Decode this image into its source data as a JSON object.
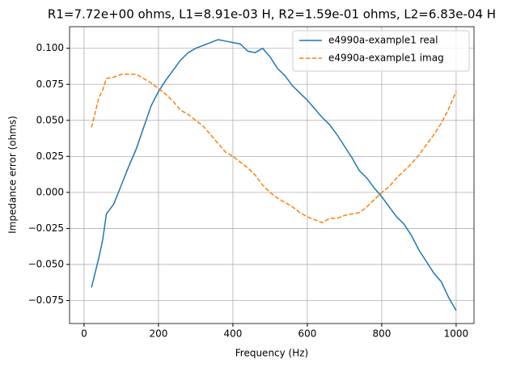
{
  "chart_data": {
    "type": "line",
    "title": "R1=7.72e+00 ohms, L1=8.91e-03 H, R2=1.59e-01 ohms, L2=6.83e-04 H",
    "xlabel": "Frequency (Hz)",
    "ylabel": "Impedance error (ohms)",
    "x": [
      20,
      40,
      50,
      60,
      80,
      100,
      120,
      140,
      160,
      180,
      200,
      220,
      240,
      260,
      280,
      300,
      320,
      340,
      360,
      380,
      400,
      420,
      440,
      460,
      480,
      500,
      520,
      540,
      560,
      580,
      600,
      620,
      640,
      660,
      680,
      700,
      720,
      740,
      760,
      780,
      800,
      820,
      840,
      860,
      880,
      900,
      920,
      940,
      960,
      980,
      1000
    ],
    "series": [
      {
        "name": "e4990a-example1 real",
        "color": "#1f77b4",
        "linestyle": "solid",
        "values": [
          -0.066,
          -0.045,
          -0.033,
          -0.015,
          -0.008,
          0.005,
          0.018,
          0.03,
          0.045,
          0.06,
          0.07,
          0.078,
          0.085,
          0.092,
          0.097,
          0.1,
          0.102,
          0.104,
          0.106,
          0.105,
          0.104,
          0.103,
          0.098,
          0.097,
          0.1,
          0.094,
          0.086,
          0.081,
          0.074,
          0.069,
          0.064,
          0.058,
          0.052,
          0.047,
          0.04,
          0.032,
          0.024,
          0.015,
          0.01,
          0.003,
          -0.003,
          -0.01,
          -0.017,
          -0.022,
          -0.03,
          -0.04,
          -0.048,
          -0.056,
          -0.062,
          -0.073,
          -0.082
        ]
      },
      {
        "name": "e4990a-example1 imag",
        "color": "#ff7f0e",
        "linestyle": "dashed",
        "values": [
          0.045,
          0.066,
          0.071,
          0.079,
          0.08,
          0.082,
          0.082,
          0.082,
          0.079,
          0.076,
          0.072,
          0.068,
          0.063,
          0.057,
          0.054,
          0.05,
          0.046,
          0.04,
          0.034,
          0.028,
          0.025,
          0.021,
          0.017,
          0.012,
          0.005,
          0.0,
          -0.004,
          -0.007,
          -0.01,
          -0.014,
          -0.017,
          -0.019,
          -0.021,
          -0.018,
          -0.018,
          -0.016,
          -0.015,
          -0.014,
          -0.01,
          -0.005,
          0.0,
          0.004,
          0.01,
          0.015,
          0.02,
          0.026,
          0.033,
          0.04,
          0.048,
          0.058,
          0.07
        ]
      }
    ],
    "xlim": [
      -39,
      1048
    ],
    "ylim": [
      -0.091,
      0.115
    ],
    "xticks": [
      0,
      200,
      400,
      600,
      800,
      1000
    ],
    "yticks": [
      {
        "value": -0.075,
        "label": "−0.075"
      },
      {
        "value": -0.05,
        "label": "−0.050"
      },
      {
        "value": -0.025,
        "label": "−0.025"
      },
      {
        "value": 0,
        "label": "0.000"
      },
      {
        "value": 0.025,
        "label": "0.025"
      },
      {
        "value": 0.05,
        "label": "0.050"
      },
      {
        "value": 0.075,
        "label": "0.075"
      },
      {
        "value": 0.1,
        "label": "0.100"
      }
    ],
    "grid": true,
    "legend": "upper right"
  }
}
